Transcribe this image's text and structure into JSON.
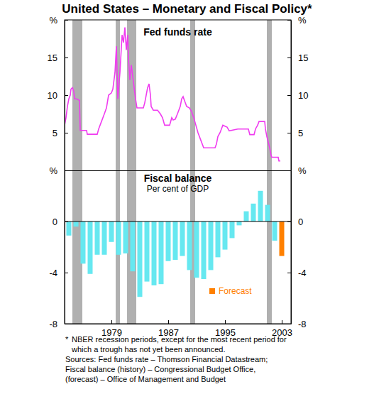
{
  "title": "United States – Monetary and Fiscal Policy*",
  "recessions": [
    {
      "start": 1973.5,
      "end": 1974.9
    },
    {
      "start": 1979.6,
      "end": 1980.2
    },
    {
      "start": 1981.2,
      "end": 1982.5
    },
    {
      "start": 1990.1,
      "end": 1990.8
    },
    {
      "start": 2000.9,
      "end": 2001.6
    }
  ],
  "chart_data": [
    {
      "type": "line",
      "title": "Fed funds rate",
      "color": "#f03cf0",
      "x": [
        1972.4,
        1972.6,
        1972.8,
        1973.0,
        1973.2,
        1973.3,
        1973.5,
        1973.7,
        1973.8,
        1974.1,
        1974.5,
        1974.6,
        1975.5,
        1975.6,
        1977.0,
        1977.2,
        1977.6,
        1978.0,
        1978.3,
        1978.6,
        1979.0,
        1979.2,
        1979.5,
        1979.7,
        1979.8,
        1979.9,
        1980.2,
        1980.5,
        1980.7,
        1980.9,
        1981.1,
        1981.3,
        1981.4,
        1981.6,
        1981.8,
        1982.0,
        1982.2,
        1982.4,
        1982.6,
        1983.5,
        1983.7,
        1983.9,
        1984.1,
        1984.3,
        1984.5,
        1984.6,
        1984.9,
        1985.5,
        1985.9,
        1986.2,
        1986.5,
        1987.2,
        1987.5,
        1987.7,
        1988.0,
        1988.3,
        1988.7,
        1988.9,
        1989.1,
        1989.4,
        1989.6,
        1990.0,
        1990.3,
        1990.6,
        1990.9,
        1991.2,
        1991.6,
        1992.0,
        1993.6,
        1993.8,
        1994.0,
        1994.3,
        1994.5,
        1994.7,
        1995.3,
        1995.6,
        1996.8,
        1998.3,
        1998.5,
        1999.1,
        1999.3,
        1999.6,
        1999.8,
        2000.6,
        2000.7,
        2000.9,
        2001.1,
        2001.3,
        2001.5,
        2001.6,
        2002.5,
        2002.6,
        2002.8
      ],
      "values": [
        6.0,
        7.0,
        8.5,
        9.5,
        10.0,
        10.8,
        11.0,
        10.5,
        9.5,
        9.5,
        9.3,
        5.3,
        5.3,
        4.8,
        4.8,
        5.5,
        6.5,
        7.5,
        8.3,
        10.0,
        10.3,
        10.8,
        13.0,
        16.5,
        13.0,
        9.5,
        13.0,
        18.0,
        17.0,
        19.0,
        16.0,
        18.0,
        15.0,
        12.0,
        14.0,
        12.5,
        11.0,
        9.5,
        8.3,
        8.3,
        9.0,
        10.0,
        11.0,
        11.5,
        10.0,
        8.5,
        8.0,
        8.0,
        7.5,
        7.0,
        6.0,
        6.0,
        7.0,
        6.7,
        6.8,
        7.5,
        8.5,
        9.5,
        9.8,
        9.0,
        8.5,
        8.3,
        7.8,
        7.0,
        6.0,
        5.0,
        4.0,
        3.0,
        3.0,
        3.5,
        4.5,
        5.0,
        5.5,
        6.0,
        5.75,
        5.25,
        5.5,
        5.5,
        4.75,
        4.75,
        5.5,
        6.0,
        6.5,
        6.5,
        5.5,
        4.5,
        3.75,
        3.0,
        2.0,
        1.75,
        1.75,
        1.25,
        1.25
      ],
      "xlim": [
        1972.4,
        2004.3
      ],
      "ylim": [
        0,
        20
      ],
      "yticks": [
        5,
        10,
        15,
        {
          "value": 20,
          "label": "%"
        }
      ],
      "tick_labels": "y"
    },
    {
      "type": "bar",
      "title": "Fiscal balance",
      "subtitle": "Per cent of GDP",
      "x": [
        1973,
        1974,
        1975,
        1976,
        1977,
        1978,
        1979,
        1980,
        1981,
        1982,
        1983,
        1984,
        1985,
        1986,
        1987,
        1988,
        1989,
        1990,
        1991,
        1992,
        1993,
        1994,
        1995,
        1996,
        1997,
        1998,
        1999,
        2000,
        2001,
        2002,
        2003
      ],
      "series": [
        {
          "color": "#66e8f0",
          "values": [
            -1.1,
            -0.4,
            -3.3,
            -4.1,
            -2.6,
            -2.6,
            -1.6,
            -2.6,
            -2.5,
            -3.9,
            -5.9,
            -4.7,
            -5.0,
            -4.9,
            -3.1,
            -3.0,
            -2.7,
            -3.8,
            -4.4,
            -4.5,
            -3.8,
            -2.8,
            -2.2,
            -1.3,
            -0.3,
            0.8,
            1.4,
            2.4,
            1.3,
            -1.5,
            null
          ]
        },
        {
          "name": "Forecast",
          "color": "#ff8000",
          "values": [
            null,
            null,
            null,
            null,
            null,
            null,
            null,
            null,
            null,
            null,
            null,
            null,
            null,
            null,
            null,
            null,
            null,
            null,
            null,
            null,
            null,
            null,
            null,
            null,
            null,
            null,
            null,
            null,
            null,
            null,
            -2.7
          ]
        }
      ],
      "xlim": [
        1972.4,
        2004.3
      ],
      "xticks": [
        1979,
        1987,
        1995,
        2003
      ],
      "ylim": [
        -8,
        4
      ],
      "yticks": [
        -8,
        -4,
        0,
        {
          "value": 4,
          "label": "%"
        }
      ],
      "legend": "lower right"
    }
  ],
  "footnote": {
    "marker": "*",
    "lines": [
      "NBER recession periods, except for the most recent period for",
      "which a trough has not yet been announced."
    ]
  },
  "sources": [
    "Sources: Fed funds rate – Thomson Financial Datastream;",
    "Fiscal balance (history) – Congressional Budget Office,",
    "(forecast) – Office of Management and Budget"
  ]
}
